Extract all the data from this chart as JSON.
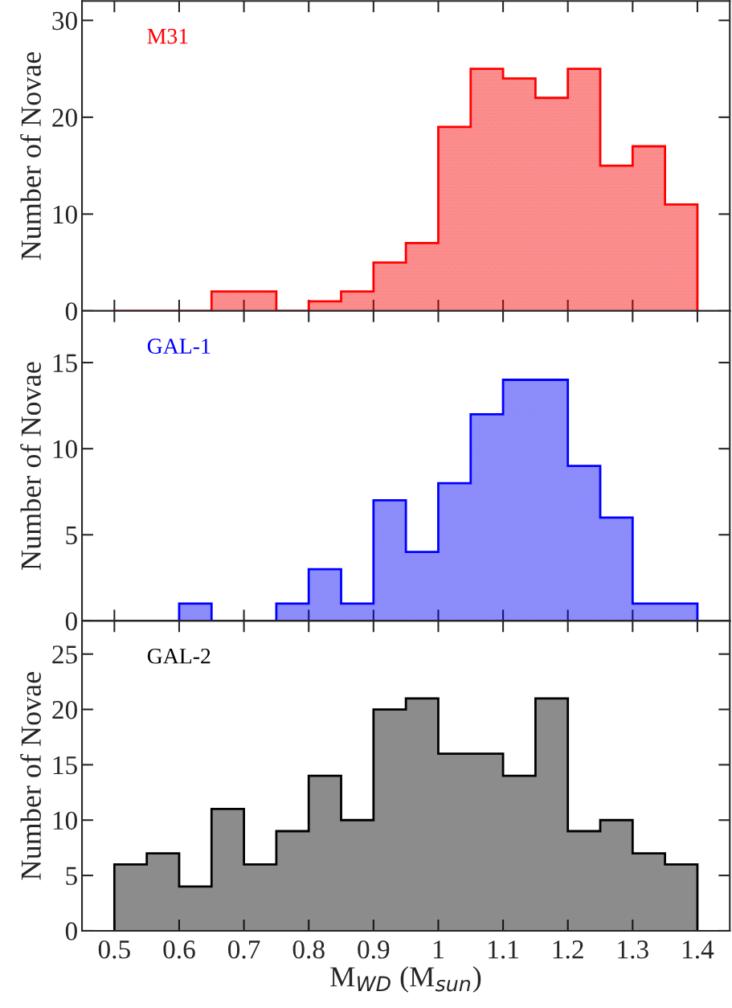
{
  "chart_data": [
    {
      "type": "histogram",
      "ylabel": "Number of Novae",
      "bins": [
        0.5,
        0.55,
        0.6,
        0.65,
        0.7,
        0.75,
        0.8,
        0.85,
        0.9,
        0.95,
        1.0,
        1.05,
        1.1,
        1.15,
        1.2,
        1.25,
        1.3,
        1.35,
        1.4
      ],
      "series": [
        {
          "name": "M31",
          "color": "#ff0000",
          "values": [
            0,
            0,
            0,
            2,
            2,
            0,
            1,
            2,
            5,
            7,
            19,
            25,
            24,
            22,
            25,
            15,
            17,
            11
          ]
        }
      ],
      "xlim": [
        0.45,
        1.45
      ],
      "xticks": [
        0.5,
        0.6,
        0.7,
        0.8,
        0.9,
        1,
        1.1,
        1.2,
        1.3,
        1.4
      ],
      "ylim": [
        0,
        32
      ],
      "yticks": [
        0,
        10,
        20,
        30
      ],
      "tick_labels": "y"
    },
    {
      "type": "histogram",
      "ylabel": "Number of Novae",
      "bins": [
        0.5,
        0.55,
        0.6,
        0.65,
        0.7,
        0.75,
        0.8,
        0.85,
        0.9,
        0.95,
        1.0,
        1.05,
        1.1,
        1.15,
        1.2,
        1.25,
        1.3,
        1.35,
        1.4
      ],
      "series": [
        {
          "name": "GAL-1",
          "color": "#0000ff",
          "values": [
            0,
            0,
            1,
            0,
            0,
            1,
            3,
            1,
            7,
            4,
            8,
            12,
            14,
            14,
            9,
            6,
            1,
            1
          ]
        }
      ],
      "xlim": [
        0.45,
        1.45
      ],
      "xticks": [
        0.5,
        0.6,
        0.7,
        0.8,
        0.9,
        1,
        1.1,
        1.2,
        1.3,
        1.4
      ],
      "ylim": [
        0,
        18
      ],
      "yticks": [
        0,
        5,
        10,
        15
      ],
      "tick_labels": "y"
    },
    {
      "type": "histogram",
      "ylabel": "Number of Novae",
      "xlabel": "M$_{WD}$ (M$_{sun}$)",
      "bins": [
        0.5,
        0.55,
        0.6,
        0.65,
        0.7,
        0.75,
        0.8,
        0.85,
        0.9,
        0.95,
        1.0,
        1.05,
        1.1,
        1.15,
        1.2,
        1.25,
        1.3,
        1.35,
        1.4
      ],
      "series": [
        {
          "name": "GAL-2",
          "color": "#000000",
          "values": [
            6,
            7,
            4,
            11,
            6,
            9,
            14,
            10,
            20,
            21,
            16,
            16,
            14,
            21,
            9,
            10,
            7,
            6
          ]
        }
      ],
      "xlim": [
        0.45,
        1.45
      ],
      "xticks": [
        0.5,
        0.6,
        0.7,
        0.8,
        0.9,
        1,
        1.1,
        1.2,
        1.3,
        1.4
      ],
      "ylim": [
        0,
        28
      ],
      "yticks": [
        0,
        5,
        10,
        15,
        20,
        25
      ]
    }
  ]
}
